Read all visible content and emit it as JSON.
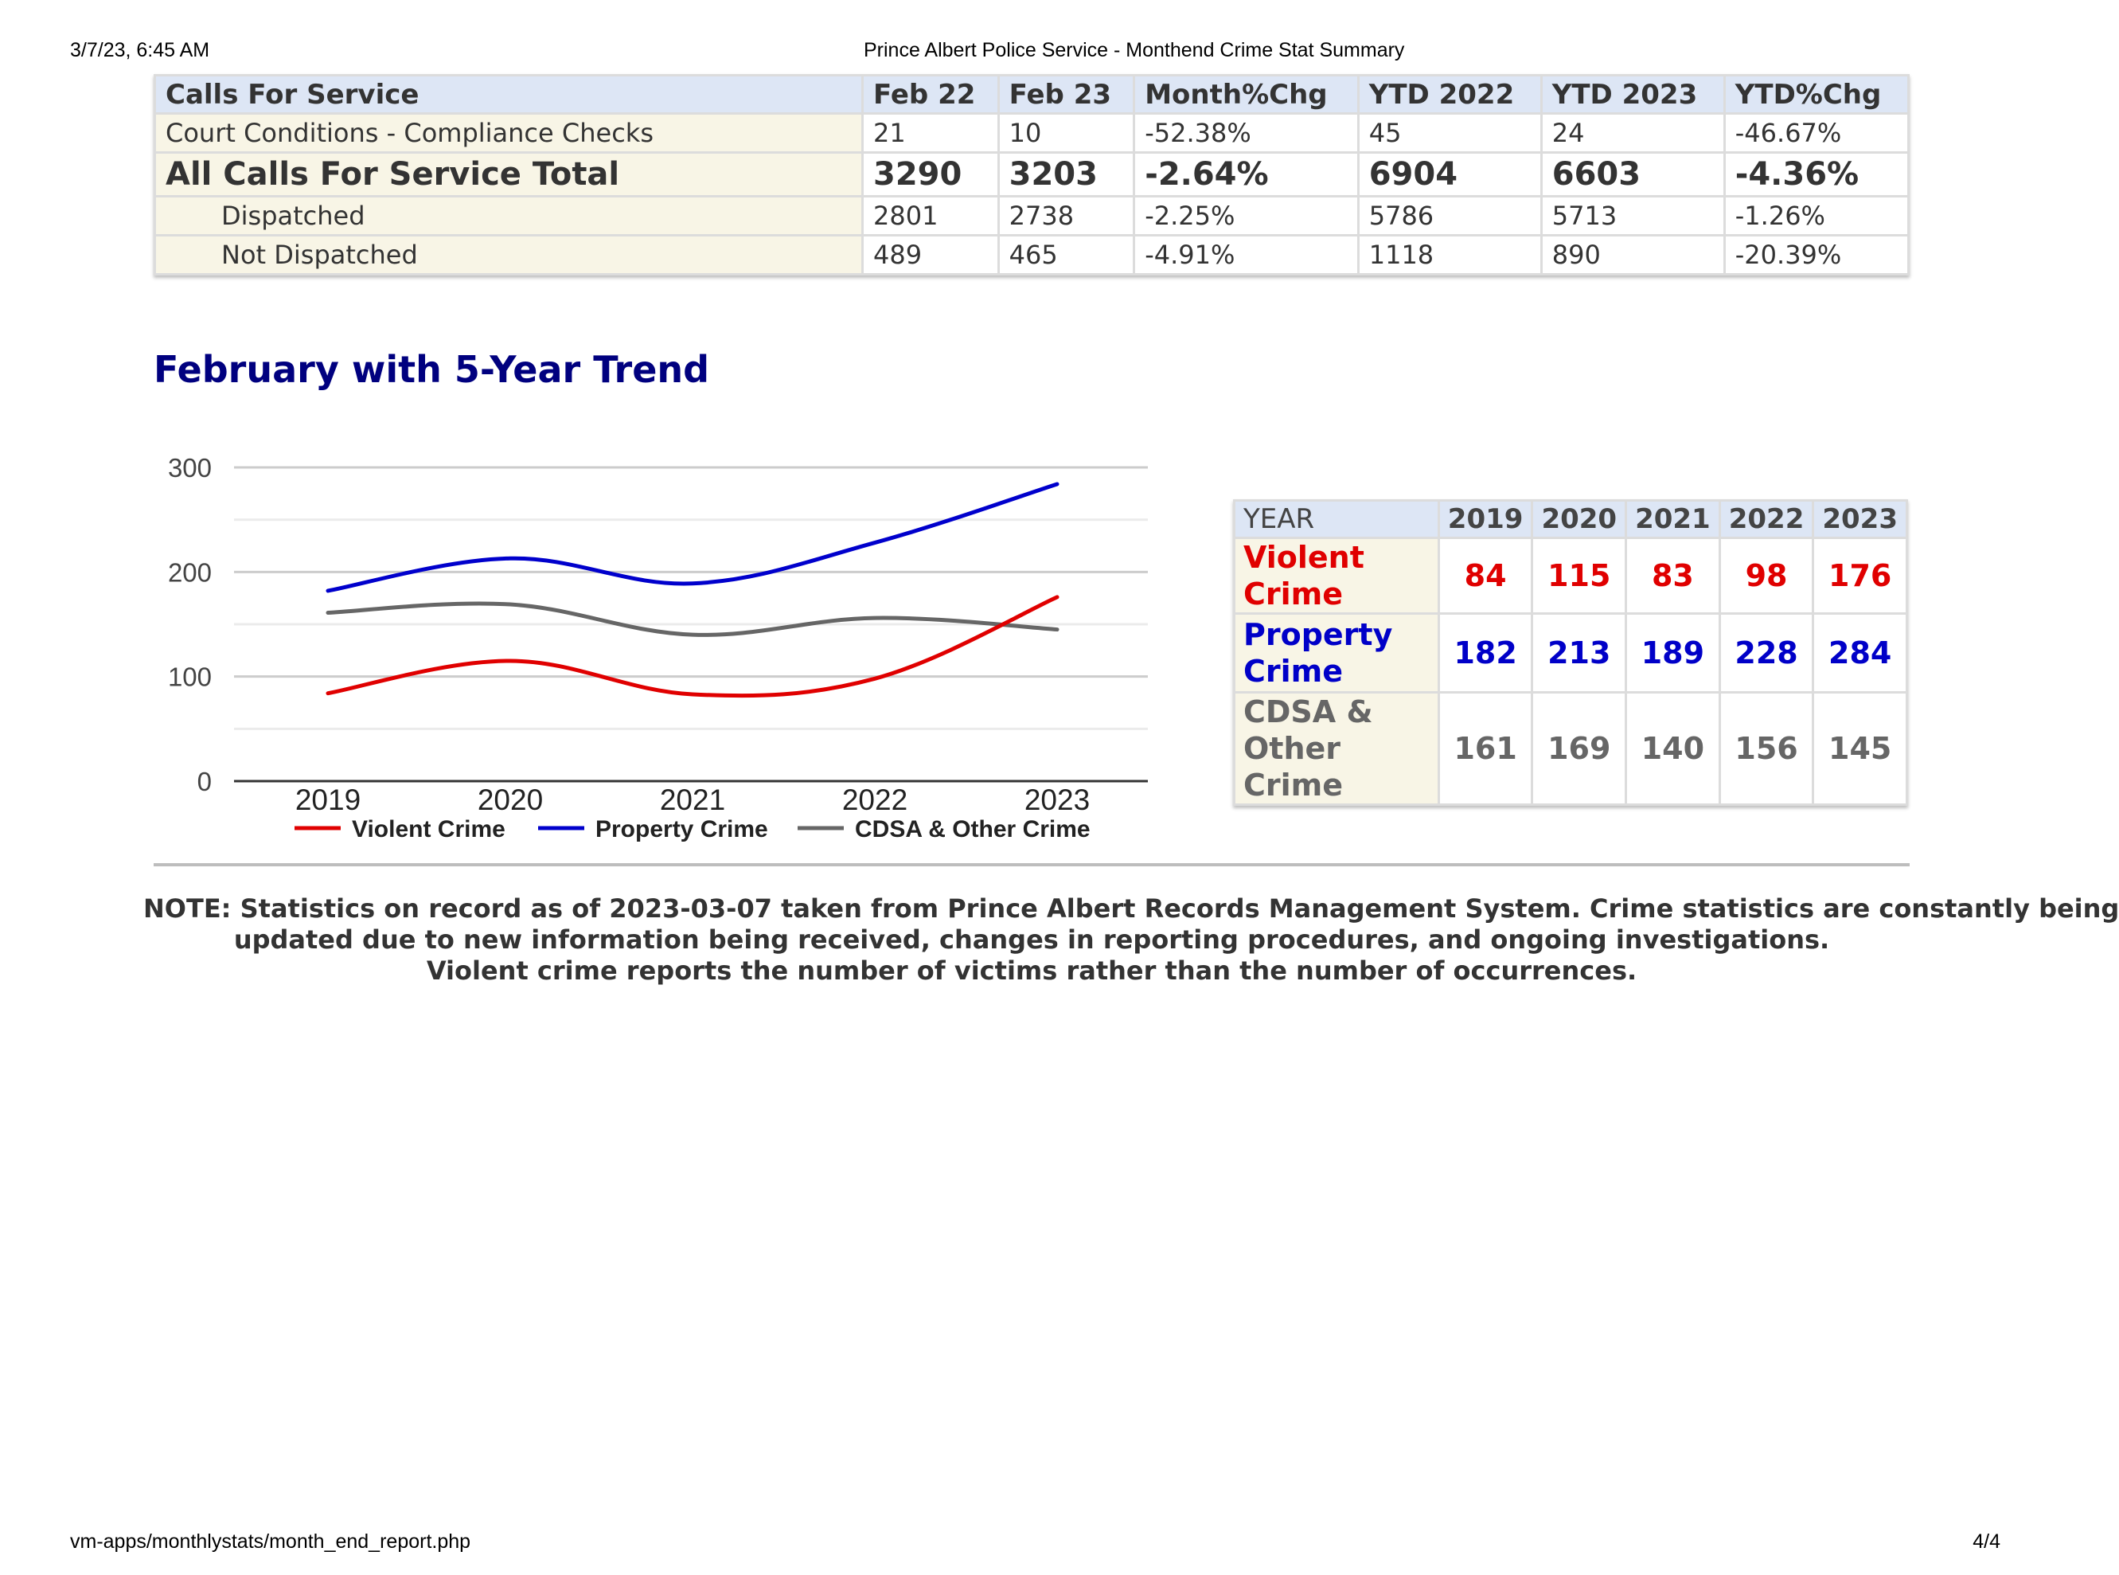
{
  "print_header": {
    "datetime": "3/7/23, 6:45 AM",
    "title": "Prince Albert Police Service - Monthend Crime Stat Summary"
  },
  "print_footer": {
    "url": "vm-apps/monthlystats/month_end_report.php",
    "page": "4/4"
  },
  "calls_table": {
    "headers": [
      "Calls For Service",
      "Feb 22",
      "Feb 23",
      "Month%Chg",
      "YTD 2022",
      "YTD 2023",
      "YTD%Chg"
    ],
    "rows": [
      [
        "Court Conditions - Compliance Checks",
        "21",
        "10",
        "-52.38%",
        "45",
        "24",
        "-46.67%"
      ],
      [
        "All Calls For Service Total",
        "3290",
        "3203",
        "-2.64%",
        "6904",
        "6603",
        "-4.36%"
      ],
      [
        "Dispatched",
        "2801",
        "2738",
        "-2.25%",
        "5786",
        "5713",
        "-1.26%"
      ],
      [
        "Not Dispatched",
        "489",
        "465",
        "-4.91%",
        "1118",
        "890",
        "-20.39%"
      ]
    ]
  },
  "section_title": "February with 5-Year Trend",
  "chart_data": {
    "type": "line",
    "title": "",
    "xlabel": "",
    "ylabel": "",
    "x": [
      "2019",
      "2020",
      "2021",
      "2022",
      "2023"
    ],
    "series": [
      {
        "name": "Violent Crime",
        "values": [
          84,
          115,
          83,
          98,
          176
        ],
        "color": "#e00000"
      },
      {
        "name": "Property Crime",
        "values": [
          182,
          213,
          189,
          228,
          284
        ],
        "color": "#0000cc"
      },
      {
        "name": "CDSA & Other Crime",
        "values": [
          161,
          169,
          140,
          156,
          145
        ],
        "color": "#666666"
      }
    ],
    "ylim": [
      0,
      300
    ],
    "yticks": [
      "0",
      "100",
      "200",
      "300"
    ],
    "grid": true,
    "legend": "bottom"
  },
  "trend_table": {
    "header_label": "YEAR",
    "years": [
      "2019",
      "2020",
      "2021",
      "2022",
      "2023"
    ],
    "rows": [
      {
        "label_lines": [
          "Violent Crime"
        ],
        "values": [
          "84",
          "115",
          "83",
          "98",
          "176"
        ]
      },
      {
        "label_lines": [
          "Property",
          "Crime"
        ],
        "values": [
          "182",
          "213",
          "189",
          "228",
          "284"
        ]
      },
      {
        "label_lines": [
          "CDSA & Other",
          "Crime"
        ],
        "values": [
          "161",
          "169",
          "140",
          "156",
          "145"
        ]
      }
    ]
  },
  "note": {
    "lines": [
      "NOTE: Statistics on record as of 2023-03-07 taken from Prince Albert Records Management System. Crime statistics are constantly being",
      "updated due to new information being received, changes in reporting procedures, and ongoing investigations.",
      "Violent crime reports the number of victims rather than the number of occurrences."
    ]
  }
}
